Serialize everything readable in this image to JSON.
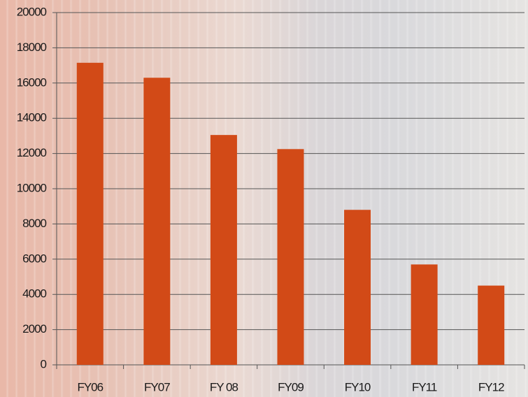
{
  "chart_data": {
    "type": "bar",
    "categories": [
      "FY06",
      "FY07",
      "FY 08",
      "FY09",
      "FY10",
      "FY11",
      "FY12"
    ],
    "values": [
      17150,
      16300,
      13050,
      12250,
      8800,
      5700,
      4500
    ],
    "color": "#d24a17",
    "ylim": [
      0,
      20000
    ],
    "yticks": [
      0,
      2000,
      4000,
      6000,
      8000,
      10000,
      12000,
      14000,
      16000,
      18000,
      20000
    ],
    "grid": true
  }
}
